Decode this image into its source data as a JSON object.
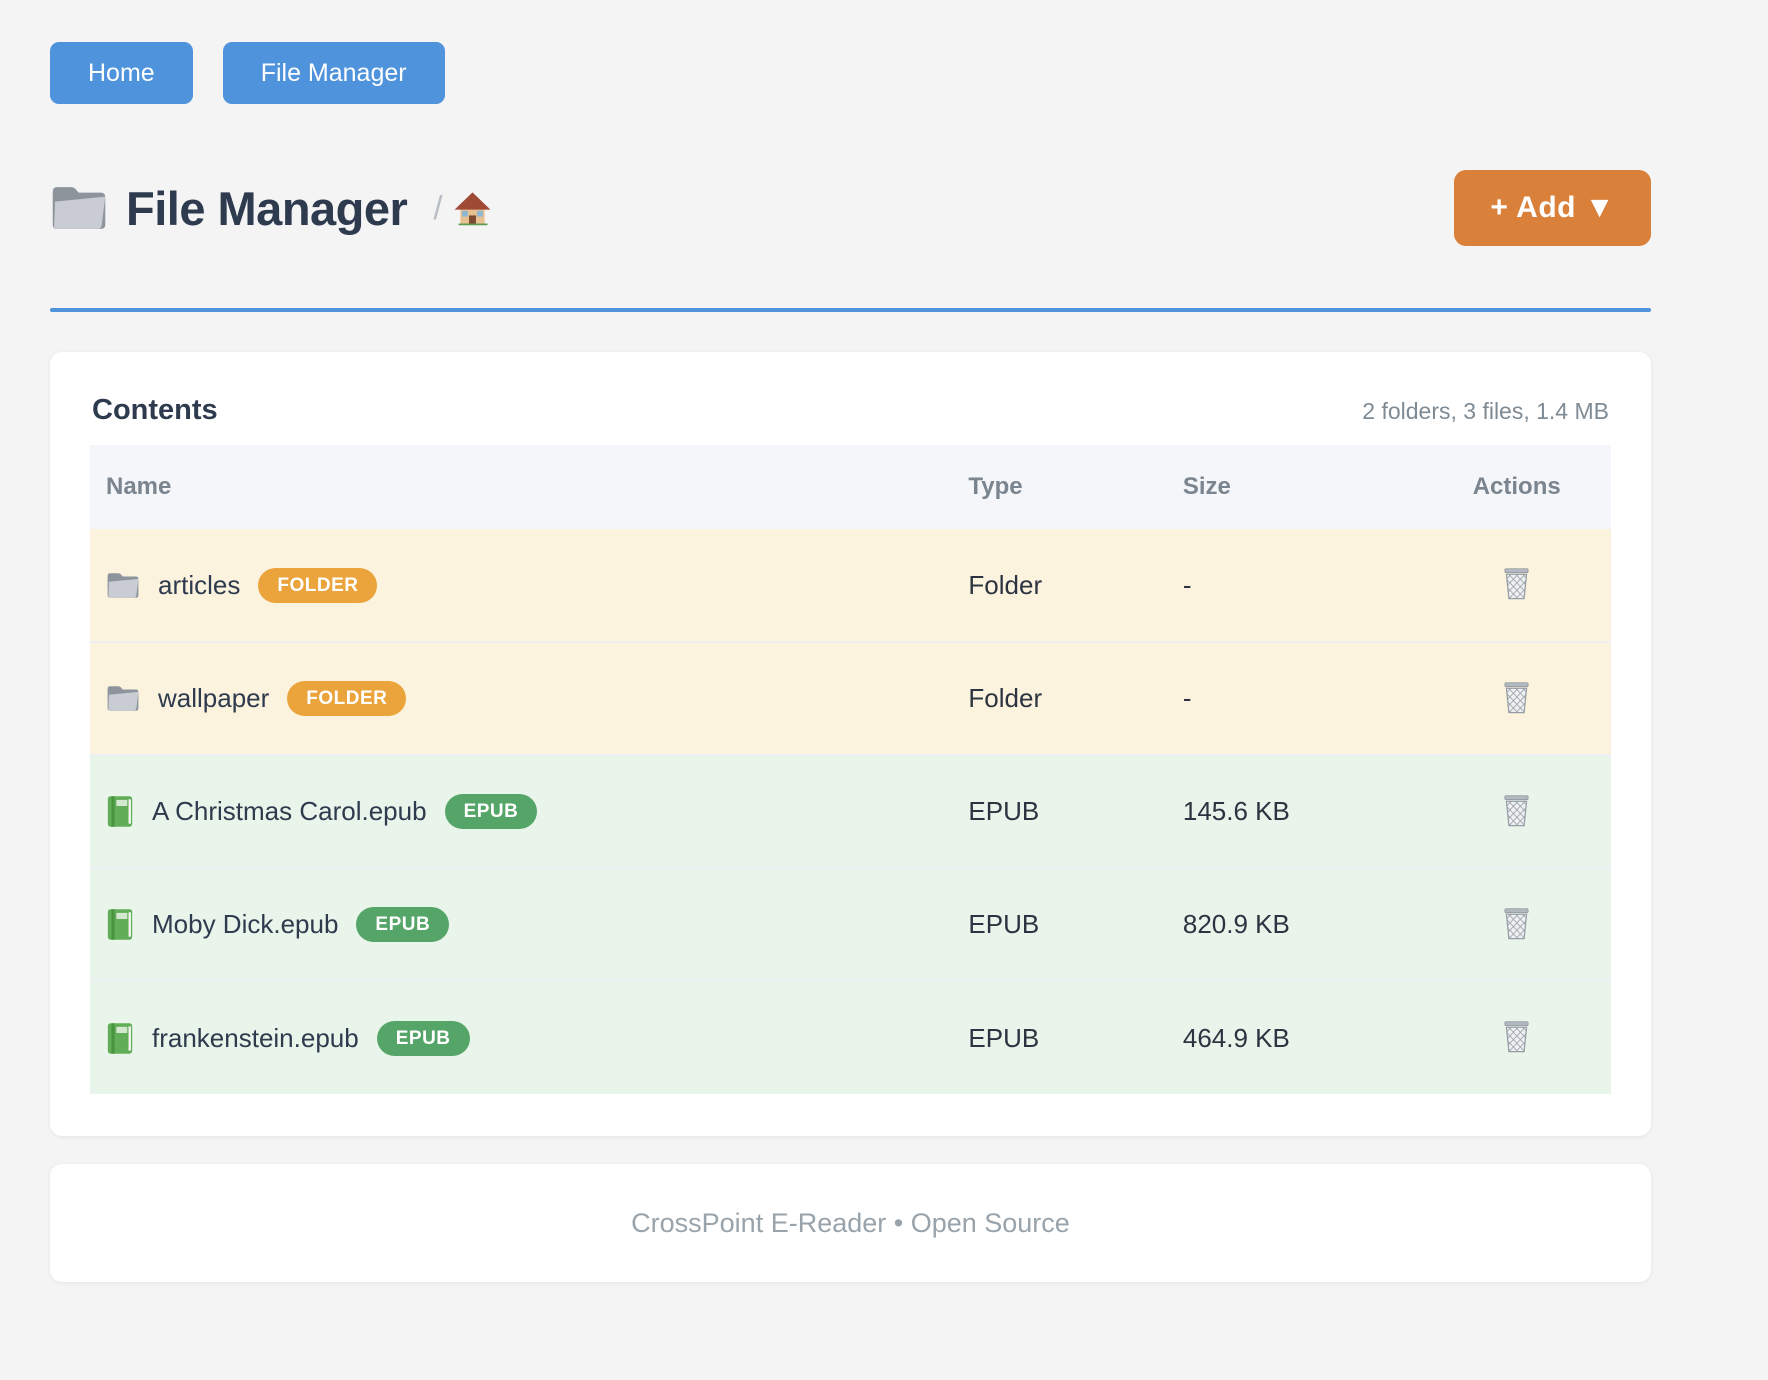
{
  "nav": {
    "home": "Home",
    "file_manager": "File Manager"
  },
  "header": {
    "title": "File Manager",
    "breadcrumb_separator": "/",
    "add_button": "+ Add ▼"
  },
  "contents": {
    "heading": "Contents",
    "summary": "2 folders, 3 files, 1.4 MB",
    "table": {
      "columns": [
        "Name",
        "Type",
        "Size",
        "Actions"
      ],
      "rows": [
        {
          "name": "articles",
          "badge": "FOLDER",
          "type": "Folder",
          "size": "-",
          "kind": "folder"
        },
        {
          "name": "wallpaper",
          "badge": "FOLDER",
          "type": "Folder",
          "size": "-",
          "kind": "folder"
        },
        {
          "name": "A Christmas Carol.epub",
          "badge": "EPUB",
          "type": "EPUB",
          "size": "145.6 KB",
          "kind": "epub"
        },
        {
          "name": "Moby Dick.epub",
          "badge": "EPUB",
          "type": "EPUB",
          "size": "820.9 KB",
          "kind": "epub"
        },
        {
          "name": "frankenstein.epub",
          "badge": "EPUB",
          "type": "EPUB",
          "size": "464.9 KB",
          "kind": "epub"
        }
      ]
    }
  },
  "footer": {
    "text": "CrossPoint E-Reader • Open Source"
  },
  "icons": {
    "title": "folder-icon",
    "breadcrumb": "home-icon",
    "folder": "folder-icon",
    "epub": "green-book-icon",
    "action": "trash-icon"
  },
  "colors": {
    "accent_blue": "#4e93db",
    "accent_orange": "#d9813a",
    "badge_folder": "#eba33c",
    "badge_epub": "#55a569",
    "row_folder_bg": "#fcf3df",
    "row_epub_bg": "#e9f4ea",
    "table_header_bg": "#f4f6f9",
    "page_bg": "#f4f4f5",
    "heading_text": "#2e3a4d",
    "muted_text": "#7e8a94"
  }
}
